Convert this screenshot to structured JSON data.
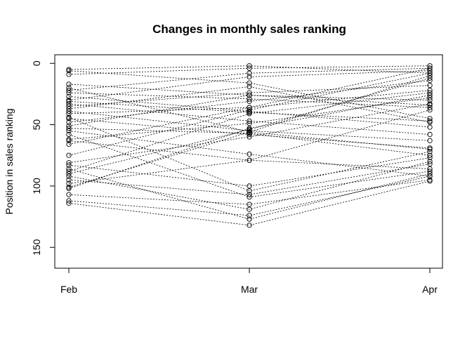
{
  "chart_data": {
    "type": "line",
    "title": "Changes in monthly sales ranking",
    "xlabel": "",
    "ylabel": "Position in sales ranking",
    "categories": [
      "Feb",
      "Mar",
      "Apr"
    ],
    "y_ticks": [
      0,
      50,
      100,
      150
    ],
    "ylim": [
      167,
      -7
    ],
    "y_reversed": true,
    "grid": false,
    "line_style": "dotted",
    "point_style": "open-circle",
    "series_color": "#000000",
    "series": [
      {
        "values": [
          5,
          2,
          8
        ]
      },
      {
        "values": [
          6,
          16,
          45
        ]
      },
      {
        "values": [
          9,
          4,
          2
        ]
      },
      {
        "values": [
          17,
          26,
          30
        ]
      },
      {
        "values": [
          22,
          8,
          4
        ]
      },
      {
        "values": [
          24,
          29,
          36
        ]
      },
      {
        "values": [
          27,
          39,
          52
        ]
      },
      {
        "values": [
          30,
          11,
          6
        ]
      },
      {
        "values": [
          31,
          40,
          47
        ]
      },
      {
        "values": [
          35,
          24,
          18
        ]
      },
      {
        "values": [
          39,
          55,
          63
        ]
      },
      {
        "values": [
          41,
          36,
          22
        ]
      },
      {
        "values": [
          45,
          58,
          69
        ]
      },
      {
        "values": [
          48,
          31,
          14
        ]
      },
      {
        "values": [
          51,
          26,
          34
        ]
      },
      {
        "values": [
          53,
          57,
          75
        ]
      },
      {
        "values": [
          62,
          49,
          28
        ]
      },
      {
        "values": [
          63,
          79,
          86
        ]
      },
      {
        "values": [
          81,
          60,
          33
        ]
      },
      {
        "values": [
          83,
          100,
          77
        ]
      },
      {
        "values": [
          88,
          41,
          24
        ]
      },
      {
        "values": [
          90,
          54,
          12
        ]
      },
      {
        "values": [
          95,
          107,
          82
        ]
      },
      {
        "values": [
          98,
          79,
          38
        ]
      },
      {
        "values": [
          101,
          56,
          10
        ]
      },
      {
        "values": [
          107,
          115,
          95
        ]
      },
      {
        "values": [
          112,
          124,
          92
        ]
      },
      {
        "values": [
          114,
          132,
          96
        ]
      },
      {
        "values": [
          44,
          104,
          72
        ]
      },
      {
        "values": [
          58,
          109,
          88
        ]
      },
      {
        "values": [
          102,
          53,
          26
        ]
      },
      {
        "values": [
          20,
          56,
          70
        ]
      },
      {
        "values": [
          33,
          47,
          58
        ]
      },
      {
        "values": [
          66,
          36,
          4
        ]
      },
      {
        "values": [
          92,
          119,
          80
        ]
      },
      {
        "values": [
          86,
          127,
          90
        ]
      },
      {
        "values": [
          75,
          38,
          8
        ]
      },
      {
        "values": [
          37,
          19,
          48
        ]
      },
      {
        "values": [
          55,
          74,
          92
        ]
      }
    ]
  }
}
